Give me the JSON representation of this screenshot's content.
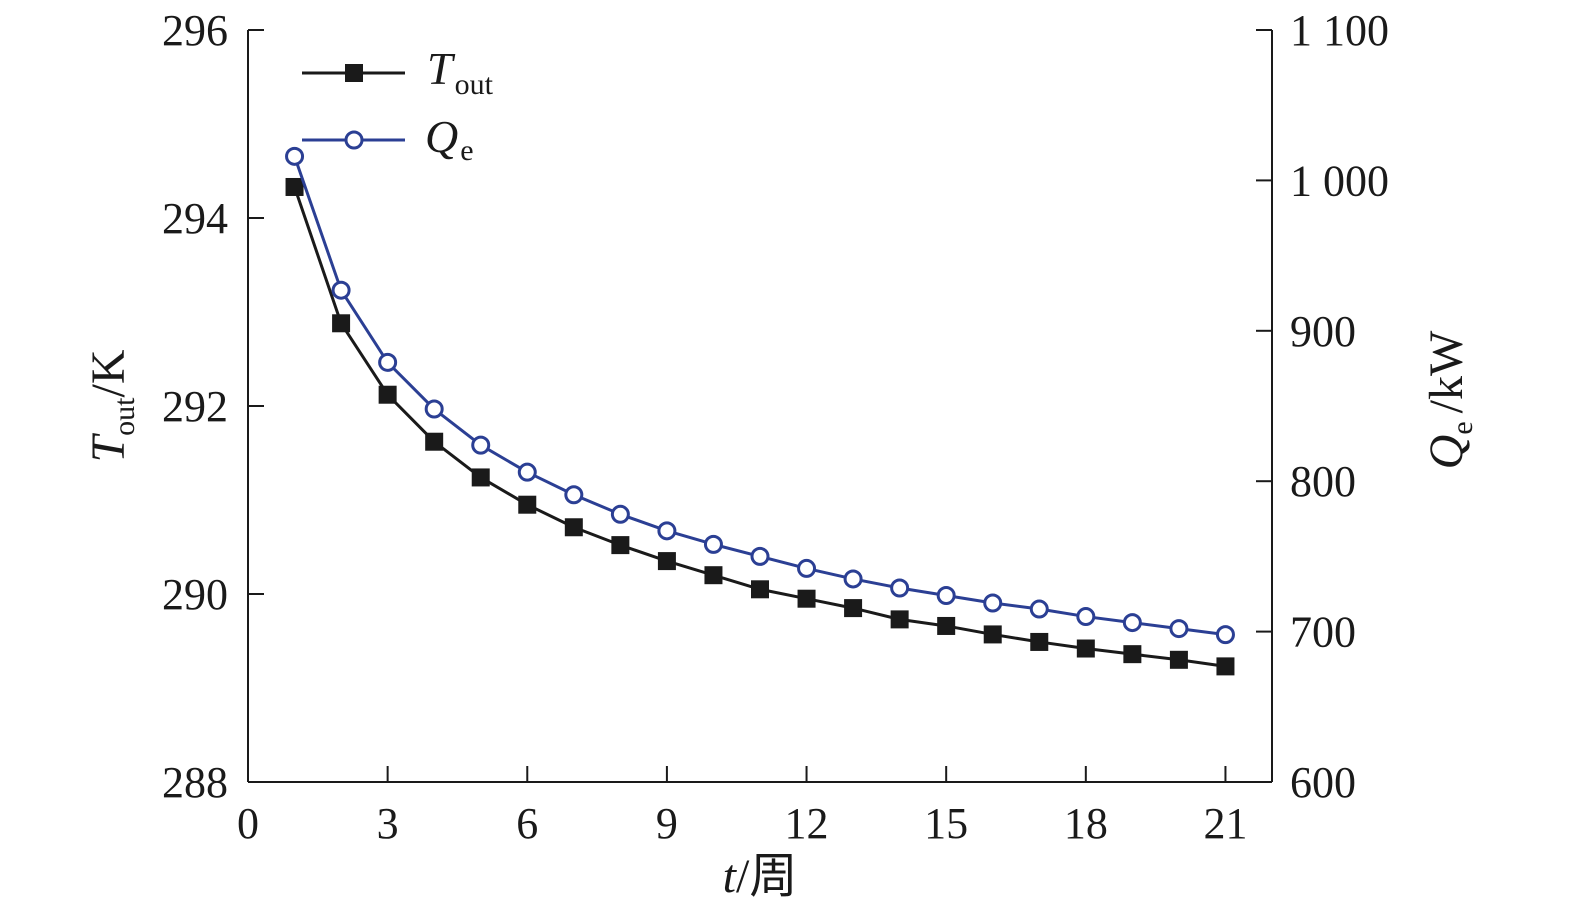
{
  "chart_data": {
    "type": "line",
    "x": [
      1,
      2,
      3,
      4,
      5,
      6,
      7,
      8,
      9,
      10,
      11,
      12,
      13,
      14,
      15,
      16,
      17,
      18,
      19,
      20,
      21
    ],
    "xlim": [
      0,
      22
    ],
    "xticks": [
      0,
      3,
      6,
      9,
      12,
      15,
      18,
      21
    ],
    "xtick_labels": [
      "0",
      "3",
      "6",
      "9",
      "12",
      "15",
      "18",
      "21"
    ],
    "xlabel": {
      "main": "t",
      "suffix": "/周"
    },
    "y_left": {
      "label_main": "T",
      "label_sub": "out",
      "label_suffix": "/K",
      "lim": [
        288,
        296
      ],
      "ticks": [
        288,
        290,
        292,
        294,
        296
      ],
      "tick_labels": [
        "288",
        "290",
        "292",
        "294",
        "296"
      ]
    },
    "y_right": {
      "label_main": "Q",
      "label_sub": "e",
      "label_suffix": "/kW",
      "lim": [
        600,
        1100
      ],
      "ticks": [
        600,
        700,
        800,
        900,
        1000,
        1100
      ],
      "tick_labels": [
        "600",
        "700",
        "800",
        "900",
        "1 000",
        "1 100"
      ]
    },
    "series": [
      {
        "name": "T",
        "name_sub": "out",
        "axis": "left",
        "marker": "square",
        "color": "#1a1a1a",
        "values": [
          294.33,
          292.88,
          292.12,
          291.62,
          291.24,
          290.95,
          290.71,
          290.52,
          290.35,
          290.2,
          290.05,
          289.95,
          289.85,
          289.73,
          289.66,
          289.57,
          289.49,
          289.42,
          289.36,
          289.3,
          289.23
        ]
      },
      {
        "name": "Q",
        "name_sub": "e",
        "axis": "right",
        "marker": "circle",
        "color": "#2b3f94",
        "values": [
          1016,
          927,
          879,
          848,
          824,
          806,
          791,
          778,
          767,
          758,
          750,
          742,
          735,
          729,
          724,
          719,
          715,
          710,
          706,
          702,
          698
        ]
      }
    ],
    "legend_position": "top-left",
    "grid": false
  }
}
